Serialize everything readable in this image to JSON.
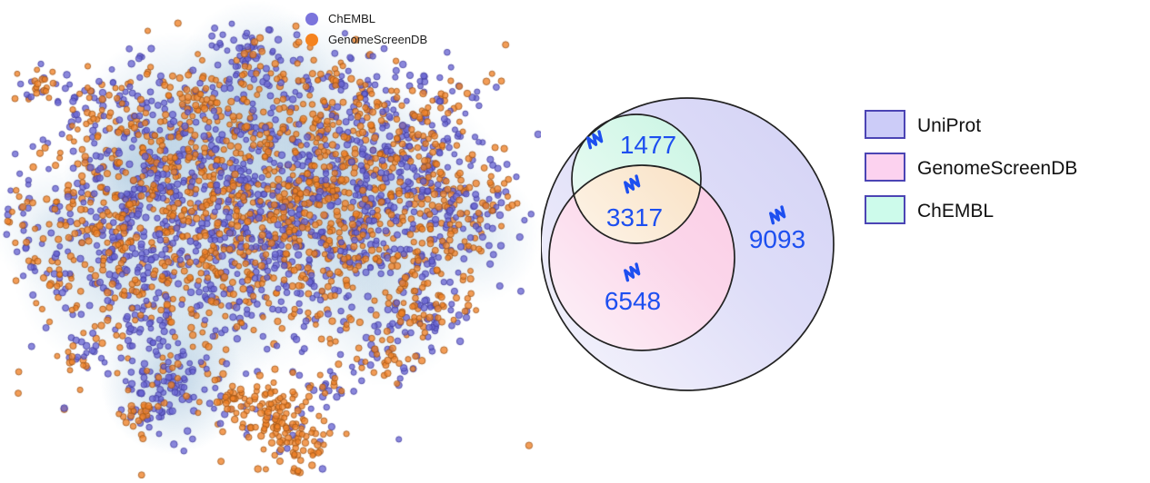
{
  "chart_data": [
    {
      "type": "scatter",
      "title": "",
      "description": "2-D embedding (t-SNE style) of protein targets with light-blue density glow, no axes shown",
      "legend_position": "top-center",
      "axes": "hidden",
      "series": [
        {
          "name": "ChEMBL",
          "color": "#7b74dc",
          "dot_fill": "#6a66d2",
          "dot_stroke": "#413c9e"
        },
        {
          "name": "GenomeScreenDB",
          "color": "#f5831f",
          "dot_fill": "#f08228",
          "dot_stroke": "#9c5518"
        }
      ],
      "seed": 7,
      "point_radius": 2.9,
      "point_alpha": 0.78,
      "glow_color": "125,170,205",
      "glows": [
        {
          "x": 195,
          "y": 150,
          "r": 115,
          "a": 0.4
        },
        {
          "x": 330,
          "y": 150,
          "r": 135,
          "a": 0.38
        },
        {
          "x": 260,
          "y": 245,
          "r": 175,
          "a": 0.3
        },
        {
          "x": 440,
          "y": 215,
          "r": 120,
          "a": 0.32
        },
        {
          "x": 120,
          "y": 300,
          "r": 105,
          "a": 0.3
        },
        {
          "x": 60,
          "y": 250,
          "r": 70,
          "a": 0.22
        },
        {
          "x": 280,
          "y": 85,
          "r": 85,
          "a": 0.3
        },
        {
          "x": 420,
          "y": 330,
          "r": 95,
          "a": 0.28
        },
        {
          "x": 520,
          "y": 260,
          "r": 75,
          "a": 0.25
        },
        {
          "x": 190,
          "y": 420,
          "r": 80,
          "a": 0.5
        },
        {
          "x": 140,
          "y": 190,
          "r": 70,
          "a": 0.35
        },
        {
          "x": 360,
          "y": 250,
          "r": 120,
          "a": 0.25
        },
        {
          "x": 230,
          "y": 330,
          "r": 100,
          "a": 0.25
        }
      ],
      "clusters": [
        {
          "x": 300,
          "y": 250,
          "sx": 150,
          "sy": 130,
          "n": 250,
          "orange_frac": 0.5
        },
        {
          "x": 170,
          "y": 190,
          "sx": 55,
          "sy": 45,
          "n": 280,
          "orange_frac": 0.5
        },
        {
          "x": 280,
          "y": 180,
          "sx": 60,
          "sy": 50,
          "n": 300,
          "orange_frac": 0.55
        },
        {
          "x": 390,
          "y": 180,
          "sx": 55,
          "sy": 45,
          "n": 280,
          "orange_frac": 0.5
        },
        {
          "x": 470,
          "y": 200,
          "sx": 40,
          "sy": 45,
          "n": 180,
          "orange_frac": 0.45
        },
        {
          "x": 230,
          "y": 250,
          "sx": 70,
          "sy": 40,
          "n": 260,
          "orange_frac": 0.5
        },
        {
          "x": 350,
          "y": 250,
          "sx": 60,
          "sy": 40,
          "n": 240,
          "orange_frac": 0.55
        },
        {
          "x": 120,
          "y": 260,
          "sx": 40,
          "sy": 40,
          "n": 150,
          "orange_frac": 0.45
        },
        {
          "x": 250,
          "y": 320,
          "sx": 80,
          "sy": 40,
          "n": 180,
          "orange_frac": 0.5
        },
        {
          "x": 420,
          "y": 310,
          "sx": 50,
          "sy": 45,
          "n": 140,
          "orange_frac": 0.5
        },
        {
          "x": 140,
          "y": 340,
          "sx": 40,
          "sy": 30,
          "n": 90,
          "orange_frac": 0.5
        },
        {
          "x": 280,
          "y": 60,
          "sx": 18,
          "sy": 16,
          "n": 50,
          "orange_frac": 0.15
        },
        {
          "x": 200,
          "y": 110,
          "sx": 45,
          "sy": 25,
          "n": 90,
          "orange_frac": 0.45
        },
        {
          "x": 360,
          "y": 110,
          "sx": 50,
          "sy": 25,
          "n": 100,
          "orange_frac": 0.5
        },
        {
          "x": 470,
          "y": 120,
          "sx": 35,
          "sy": 25,
          "n": 70,
          "orange_frac": 0.5
        },
        {
          "x": 100,
          "y": 120,
          "sx": 30,
          "sy": 25,
          "n": 60,
          "orange_frac": 0.55
        },
        {
          "x": 45,
          "y": 95,
          "sx": 12,
          "sy": 12,
          "n": 25,
          "orange_frac": 0.6
        },
        {
          "x": 30,
          "y": 230,
          "sx": 15,
          "sy": 20,
          "n": 30,
          "orange_frac": 0.4
        },
        {
          "x": 60,
          "y": 300,
          "sx": 15,
          "sy": 12,
          "n": 25,
          "orange_frac": 0.5
        },
        {
          "x": 490,
          "y": 260,
          "sx": 25,
          "sy": 25,
          "n": 70,
          "orange_frac": 0.5
        },
        {
          "x": 540,
          "y": 220,
          "sx": 18,
          "sy": 20,
          "n": 40,
          "orange_frac": 0.5
        },
        {
          "x": 90,
          "y": 390,
          "sx": 14,
          "sy": 12,
          "n": 25,
          "orange_frac": 0.5
        },
        {
          "x": 470,
          "y": 350,
          "sx": 25,
          "sy": 20,
          "n": 60,
          "orange_frac": 0.5
        },
        {
          "x": 420,
          "y": 390,
          "sx": 18,
          "sy": 14,
          "n": 40,
          "orange_frac": 0.7
        },
        {
          "x": 360,
          "y": 420,
          "sx": 12,
          "sy": 10,
          "n": 20,
          "orange_frac": 0.5
        },
        {
          "x": 190,
          "y": 420,
          "sx": 28,
          "sy": 30,
          "n": 120,
          "orange_frac": 0.12
        },
        {
          "x": 150,
          "y": 455,
          "sx": 15,
          "sy": 12,
          "n": 30,
          "orange_frac": 0.6
        },
        {
          "x": 255,
          "y": 440,
          "sx": 10,
          "sy": 10,
          "n": 25,
          "orange_frac": 0.9
        },
        {
          "x": 300,
          "y": 455,
          "sx": 22,
          "sy": 20,
          "n": 90,
          "orange_frac": 0.93
        },
        {
          "x": 330,
          "y": 490,
          "sx": 20,
          "sy": 18,
          "n": 70,
          "orange_frac": 0.95
        }
      ]
    },
    {
      "type": "venn",
      "title": "",
      "label_color": "#1d4ff0",
      "outline_color": "#222222",
      "sets": [
        {
          "name": "UniProt",
          "swatch_fill": "#ccccf8",
          "circle_fill": "#d6d5f6"
        },
        {
          "name": "GenomeScreenDB",
          "swatch_fill": "#fcd2ef",
          "circle_fill": "#fbcfe7"
        },
        {
          "name": "ChEMBL",
          "swatch_fill": "#cdfbeb",
          "circle_fill": "#ccf6e6"
        }
      ],
      "swatch_border": "#4b44b4",
      "regions": [
        {
          "name": "ChEMBL only (within UniProt)",
          "value": "1477"
        },
        {
          "name": "ChEMBL and GenomeScreenDB overlap",
          "value": "3317"
        },
        {
          "name": "GenomeScreenDB only (within UniProt)",
          "value": "6548"
        },
        {
          "name": "UniProt only",
          "value": "9093"
        }
      ]
    }
  ]
}
